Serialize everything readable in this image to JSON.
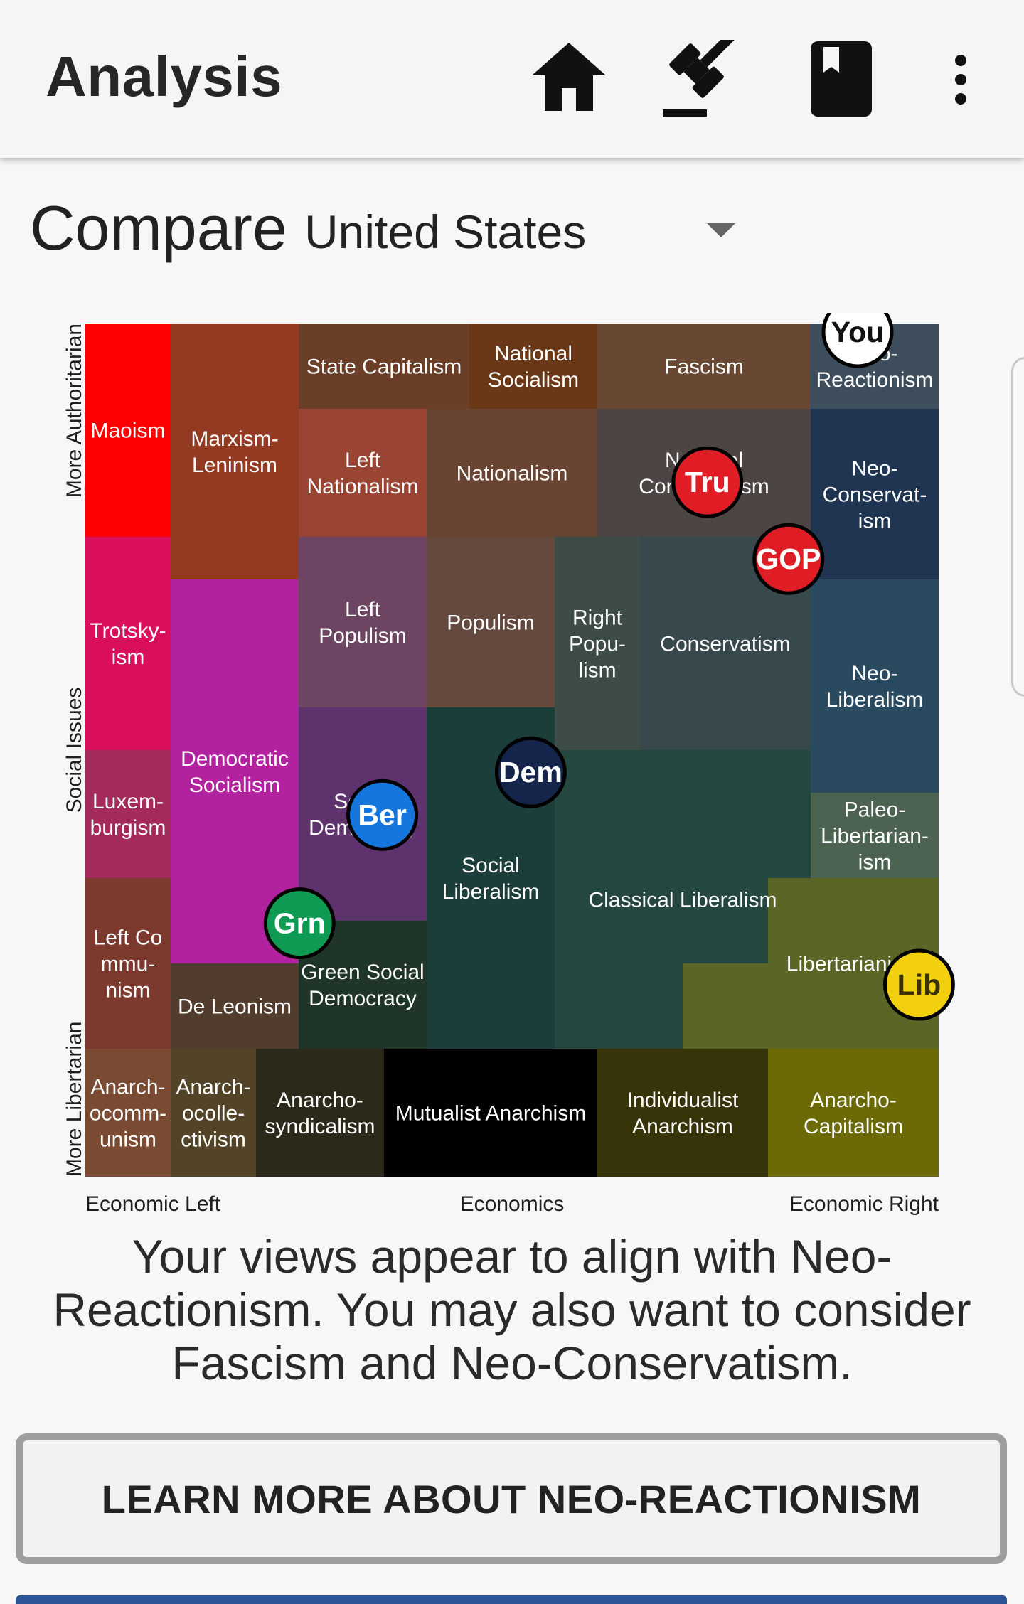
{
  "appbar": {
    "title": "Analysis",
    "icons": [
      "home-icon",
      "gavel-icon",
      "book-icon",
      "more-vert-icon"
    ]
  },
  "compare": {
    "label": "Compare",
    "country": "United States"
  },
  "colors": {
    "appbar_bg": "#f5f5f5",
    "button_border": "#9e9e9e",
    "bottom_strip": "#2c5597"
  },
  "chart_data": {
    "type": "heatmap",
    "axis_labels": {
      "x_left": "Economic Left",
      "x_center": "Economics",
      "x_right": "Economic Right",
      "y_top": "More Authoritarian",
      "y_center": "Social Issues",
      "y_bottom": "More Libertarian"
    },
    "x_range": [
      0,
      100
    ],
    "y_range": [
      0,
      100
    ],
    "regions": [
      {
        "id": "maoism",
        "lines": [
          "Maoism"
        ],
        "color": "#ff0000",
        "rects": [
          [
            0,
            0,
            10,
            25
          ]
        ]
      },
      {
        "id": "marxism-leninism",
        "lines": [
          "Marxism-",
          "Leninism"
        ],
        "color": "#923a22",
        "rects": [
          [
            10,
            0,
            25,
            30
          ]
        ]
      },
      {
        "id": "state-capitalism",
        "lines": [
          "State Capitalism"
        ],
        "color": "#6b3f27",
        "rects": [
          [
            25,
            0,
            45,
            10
          ]
        ]
      },
      {
        "id": "national-socialism",
        "lines": [
          "National",
          "Socialism"
        ],
        "color": "#6a3717",
        "rects": [
          [
            45,
            0,
            60,
            10
          ]
        ]
      },
      {
        "id": "fascism",
        "lines": [
          "Fascism"
        ],
        "color": "#684733",
        "rects": [
          [
            60,
            0,
            85,
            10
          ]
        ]
      },
      {
        "id": "neo-reactionism",
        "lines": [
          "Neo-",
          "Reactionism"
        ],
        "color": "#3e4e5d",
        "rects": [
          [
            85,
            0,
            100,
            10
          ]
        ]
      },
      {
        "id": "left-nationalism",
        "lines": [
          "Left",
          "Nationalism"
        ],
        "color": "#9a4434",
        "rects": [
          [
            25,
            10,
            40,
            25
          ]
        ]
      },
      {
        "id": "nationalism",
        "lines": [
          "Nationalism"
        ],
        "color": "#6a4432",
        "rects": [
          [
            40,
            10,
            60,
            25
          ]
        ]
      },
      {
        "id": "national-conservatism",
        "lines": [
          "National",
          "Conservatism"
        ],
        "color": "#4c4543",
        "rects": [
          [
            60,
            10,
            85,
            25
          ]
        ]
      },
      {
        "id": "neo-conservatism",
        "lines": [
          "Neo-",
          "Conservat-",
          "ism"
        ],
        "color": "#1f3552",
        "rects": [
          [
            85,
            10,
            100,
            30
          ]
        ]
      },
      {
        "id": "trotskyism",
        "lines": [
          "Trotsky-",
          "ism"
        ],
        "color": "#d90e5d",
        "rects": [
          [
            0,
            25,
            10,
            50
          ]
        ]
      },
      {
        "id": "left-populism",
        "lines": [
          "Left",
          "Populism"
        ],
        "color": "#6d4562",
        "rects": [
          [
            25,
            25,
            40,
            45
          ]
        ]
      },
      {
        "id": "populism",
        "lines": [
          "Populism"
        ],
        "color": "#65493f",
        "rects": [
          [
            40,
            25,
            55,
            45
          ]
        ]
      },
      {
        "id": "right-populism",
        "lines": [
          "Right",
          "Popu-",
          "lism"
        ],
        "color": "#3e4c48",
        "rects": [
          [
            55,
            25,
            65,
            50
          ]
        ]
      },
      {
        "id": "conservatism",
        "lines": [
          "Conservatism"
        ],
        "color": "#38494d",
        "rects": [
          [
            65,
            25,
            85,
            50
          ]
        ]
      },
      {
        "id": "democratic-socialism",
        "lines": [
          "Democratic",
          "Socialism"
        ],
        "color": "#b3229e",
        "rects": [
          [
            10,
            30,
            25,
            75
          ]
        ]
      },
      {
        "id": "neo-liberalism",
        "lines": [
          "Neo-",
          "Liberalism"
        ],
        "color": "#2a4a60",
        "rects": [
          [
            85,
            30,
            100,
            55
          ]
        ]
      },
      {
        "id": "luxemburgism",
        "lines": [
          "Luxem-",
          "burgism"
        ],
        "color": "#a42a5b",
        "rects": [
          [
            0,
            50,
            10,
            65
          ]
        ]
      },
      {
        "id": "social-democracy",
        "lines": [
          "Social",
          "Democracy"
        ],
        "color": "#5d326d",
        "rects": [
          [
            25,
            45,
            40,
            70
          ]
        ]
      },
      {
        "id": "social-liberalism",
        "lines": [
          "Social",
          "Liberalism"
        ],
        "color": "#1c3e3b",
        "rects": [
          [
            40,
            45,
            55,
            85
          ]
        ]
      },
      {
        "id": "classical-liberalism",
        "lines": [
          "Classical Liberalism"
        ],
        "color": "#24473f",
        "rects": [
          [
            55,
            50,
            85,
            85
          ]
        ]
      },
      {
        "id": "paleo-libertarianism",
        "lines": [
          "Paleo-",
          "Libertarian-",
          "ism"
        ],
        "color": "#4b6350",
        "rects": [
          [
            85,
            55,
            100,
            65
          ]
        ]
      },
      {
        "id": "left-communism",
        "lines": [
          "Left Co",
          "mmu-",
          "nism"
        ],
        "color": "#7c3a2f",
        "rects": [
          [
            0,
            65,
            10,
            85
          ]
        ]
      },
      {
        "id": "libertarianism",
        "lines": [
          "Libertarianism"
        ],
        "color": "#5a6526",
        "rects": [
          [
            80,
            65,
            100,
            85
          ],
          [
            70,
            75,
            80,
            85
          ]
        ]
      },
      {
        "id": "green-social-democracy",
        "lines": [
          "Green Social",
          "Democracy"
        ],
        "color": "#1f3528",
        "rects": [
          [
            25,
            70,
            40,
            85
          ]
        ]
      },
      {
        "id": "de-leonism",
        "lines": [
          "De Leonism"
        ],
        "color": "#523c2e",
        "rects": [
          [
            10,
            75,
            25,
            85
          ]
        ]
      },
      {
        "id": "anarcho-communism",
        "lines": [
          "Anarch-",
          "ocomm-",
          "unism"
        ],
        "color": "#7b4a32",
        "rects": [
          [
            0,
            85,
            10,
            100
          ]
        ]
      },
      {
        "id": "anarcho-collectivism",
        "lines": [
          "Anarch-",
          "ocolle-",
          "ctivism"
        ],
        "color": "#534327",
        "rects": [
          [
            10,
            85,
            20,
            100
          ]
        ]
      },
      {
        "id": "anarcho-syndicalism",
        "lines": [
          "Anarcho-",
          "syndicalism"
        ],
        "color": "#2b2a1a",
        "rects": [
          [
            20,
            85,
            35,
            100
          ]
        ]
      },
      {
        "id": "mutualist-anarchism",
        "lines": [
          "Mutualist Anarchism"
        ],
        "color": "#000000",
        "rects": [
          [
            35,
            85,
            60,
            100
          ]
        ]
      },
      {
        "id": "individualist-anarchism",
        "lines": [
          "Individualist",
          "Anarchism"
        ],
        "color": "#383409",
        "rects": [
          [
            60,
            85,
            80,
            100
          ]
        ]
      },
      {
        "id": "anarcho-capitalism",
        "lines": [
          "Anarcho-",
          "Capitalism"
        ],
        "color": "#6b6a06",
        "rects": [
          [
            80,
            85,
            100,
            100
          ]
        ]
      }
    ],
    "markers": [
      {
        "id": "you",
        "label": "You",
        "x": 90.5,
        "y": 1,
        "fill": "#ffffff",
        "text": "#111111"
      },
      {
        "id": "tru",
        "label": "Tru",
        "x": 72.9,
        "y": 18.6,
        "fill": "#e01c24",
        "text": "#ffffff"
      },
      {
        "id": "gop",
        "label": "GOP",
        "x": 82.4,
        "y": 27.6,
        "fill": "#e01c24",
        "text": "#ffffff"
      },
      {
        "id": "dem",
        "label": "Dem",
        "x": 52.2,
        "y": 52.6,
        "fill": "#14244a",
        "text": "#ffffff"
      },
      {
        "id": "ber",
        "label": "Ber",
        "x": 34.8,
        "y": 57.6,
        "fill": "#1577de",
        "text": "#ffffff"
      },
      {
        "id": "grn",
        "label": "Grn",
        "x": 25.1,
        "y": 70.3,
        "fill": "#0e9a52",
        "text": "#ffffff"
      },
      {
        "id": "lib",
        "label": "Lib",
        "x": 97.7,
        "y": 77.5,
        "fill": "#f2d00e",
        "text": "#3a3000"
      }
    ]
  },
  "result": {
    "text": "Your views appear to align with Neo-Reactionism. You may also want to consider Fascism and Neo-Conservatism."
  },
  "learn_button": {
    "label": "LEARN MORE ABOUT NEO-REACTIONISM"
  }
}
